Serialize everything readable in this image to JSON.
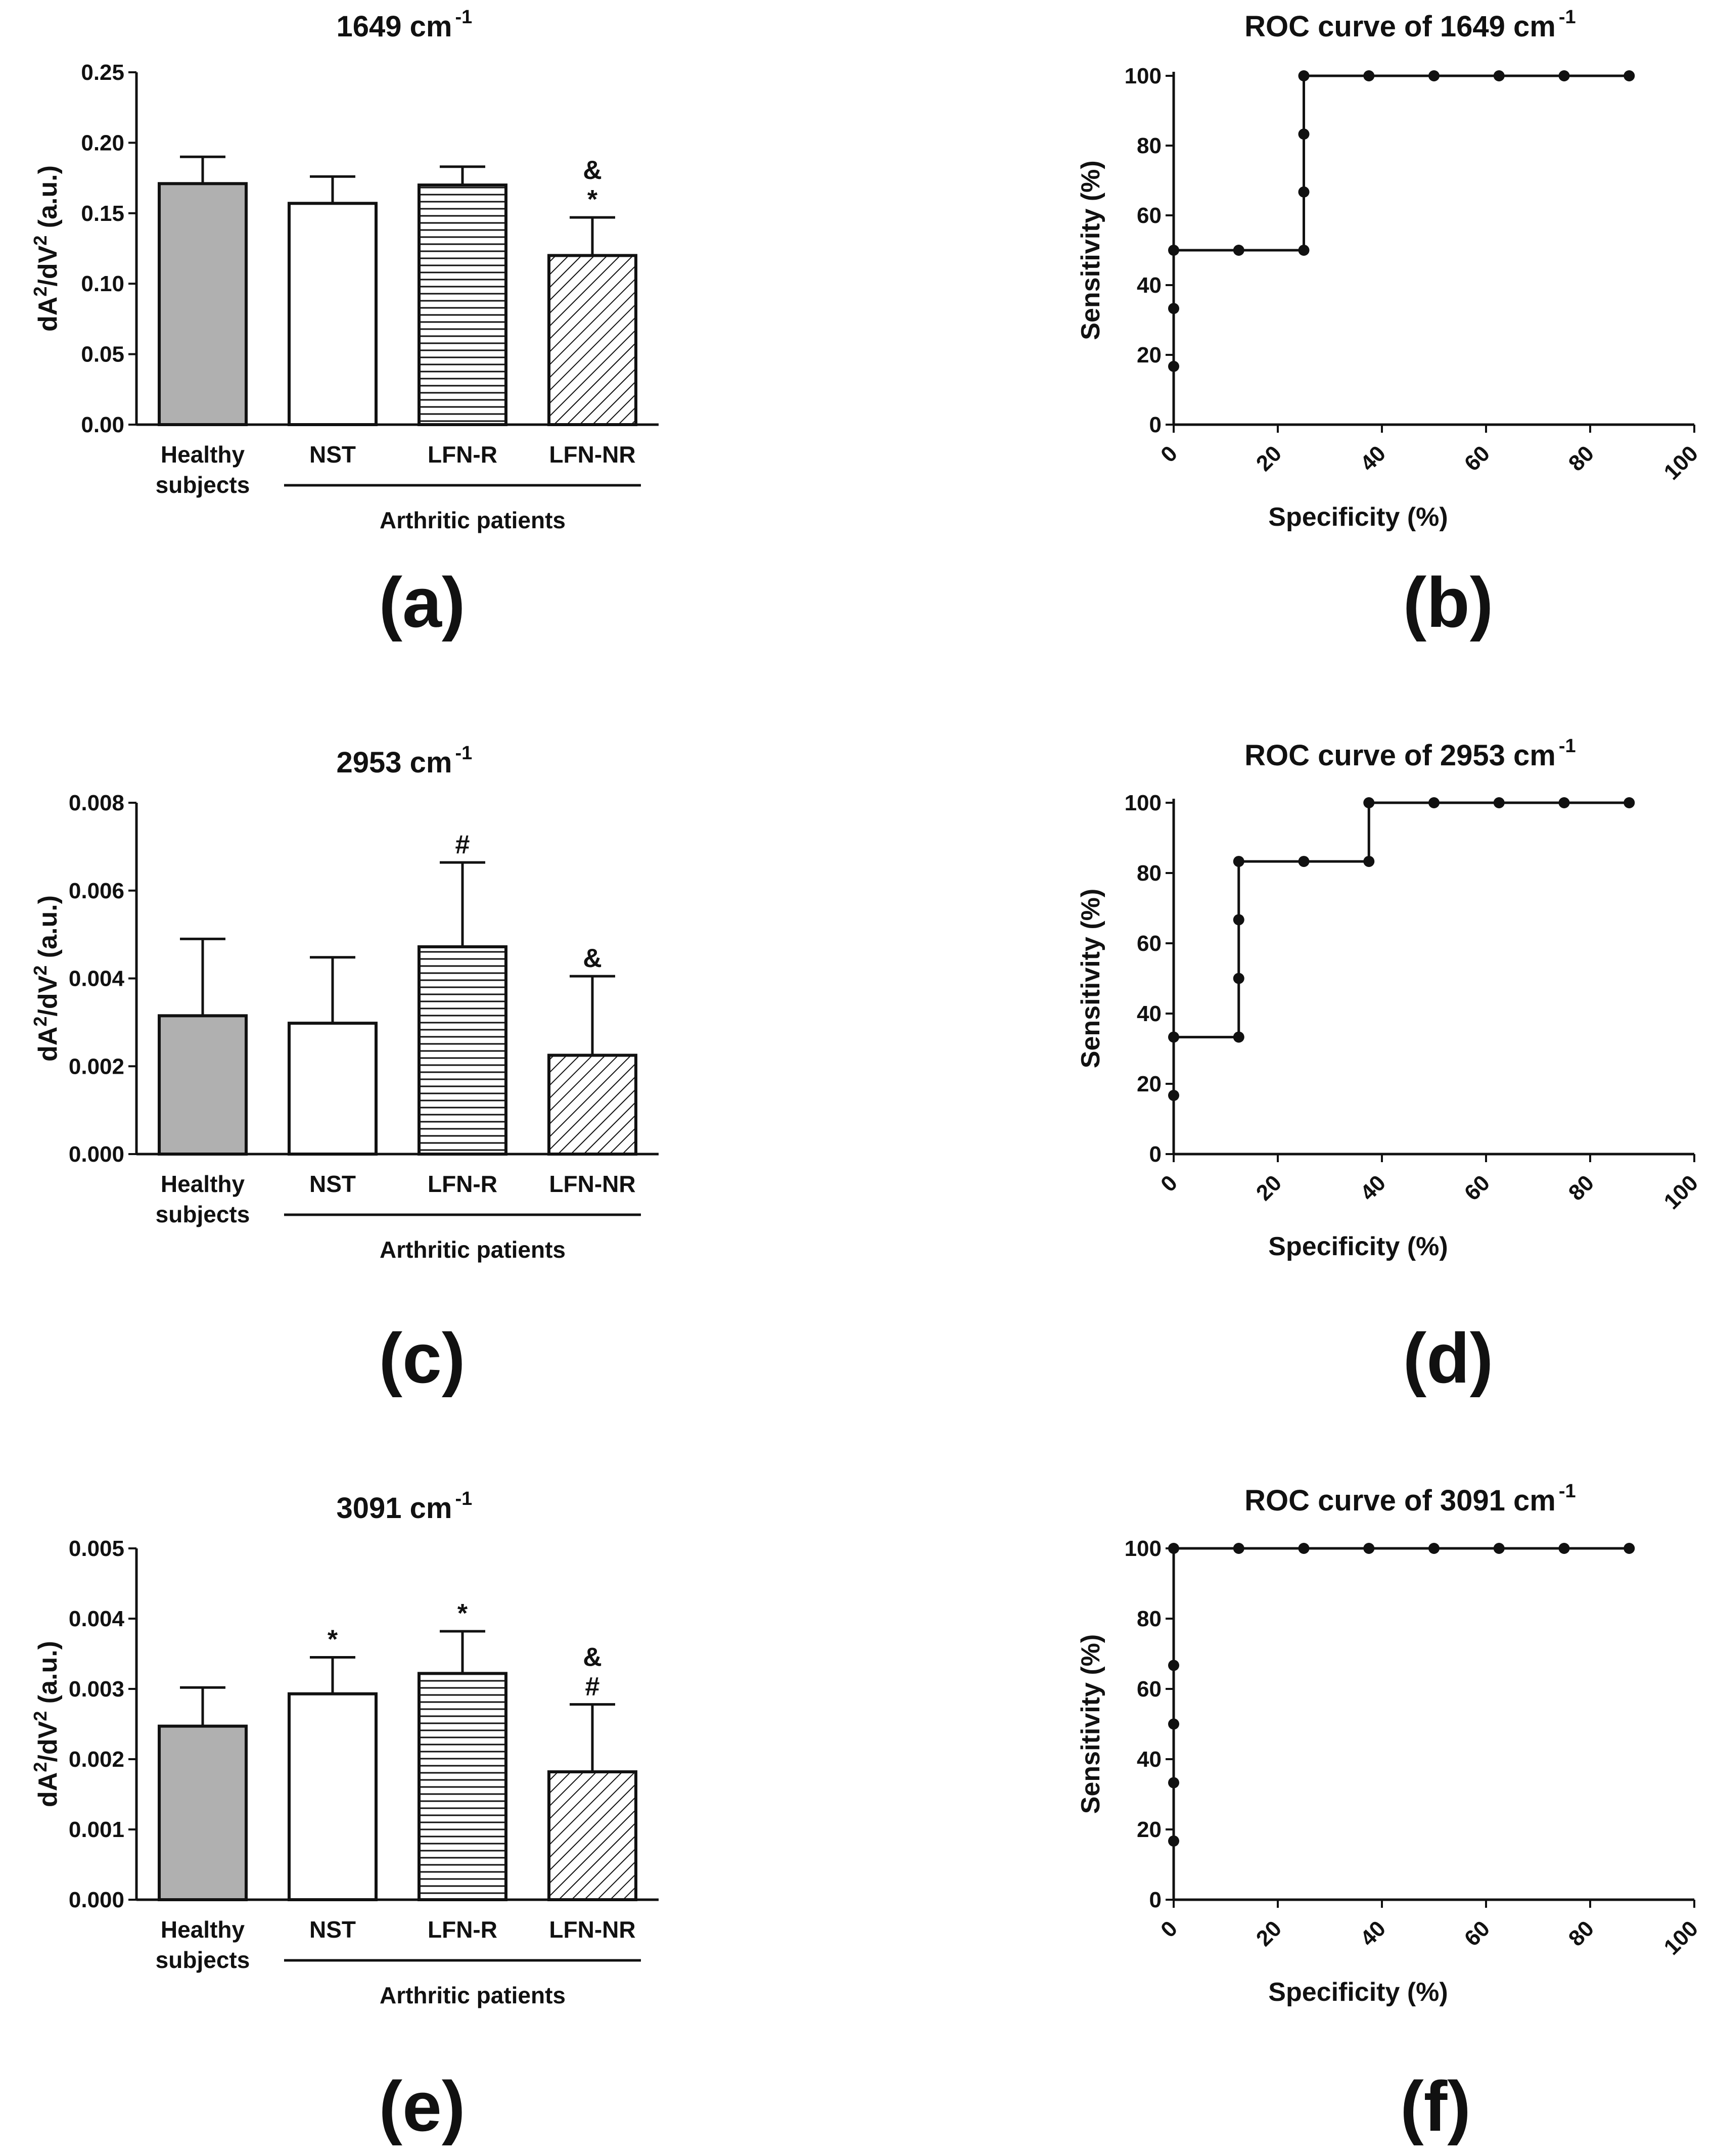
{
  "colors": {
    "axis": "#111111",
    "healthy_fill": "#b0b0b0",
    "bar_edge": "#111111",
    "background": "#ffffff"
  },
  "chart_data": [
    {
      "id": "a",
      "type": "bar",
      "letter": "(a)",
      "title": "1649 cm",
      "title_sup": "-1",
      "ylabel": "dA",
      "ylabel_sup1": "2",
      "ylabel_mid": "/dV",
      "ylabel_sup2": "2",
      "ylabel_end": " (a.u.)",
      "ylim": [
        0,
        0.25
      ],
      "yticks": [
        "0.00",
        "0.05",
        "0.10",
        "0.15",
        "0.20",
        "0.25"
      ],
      "categories": [
        {
          "line1": "Healthy",
          "line2": "subjects"
        },
        {
          "line1": "NST",
          "line2": ""
        },
        {
          "line1": "LFN-R",
          "line2": ""
        },
        {
          "line1": "LFN-NR",
          "line2": ""
        }
      ],
      "patterns": [
        "gray",
        "white",
        "hlines",
        "diag"
      ],
      "values": [
        0.171,
        0.157,
        0.17,
        0.12
      ],
      "errors": [
        0.019,
        0.019,
        0.013,
        0.027
      ],
      "annotations": [
        [],
        [],
        [],
        [
          "&",
          "*"
        ]
      ],
      "group_label": "Arthritic patients"
    },
    {
      "id": "b",
      "type": "line",
      "letter": "(b)",
      "title": "ROC curve of 1649 cm",
      "title_sup": "-1",
      "xlabel": "Specificity (%)",
      "ylabel": "Sensitivity (%)",
      "xlim": [
        0,
        100
      ],
      "ylim": [
        0,
        100
      ],
      "xticks": [
        "0",
        "20",
        "40",
        "60",
        "80",
        "100"
      ],
      "yticks": [
        "0",
        "20",
        "40",
        "60",
        "80",
        "100"
      ],
      "x": [
        0,
        0,
        0,
        12.5,
        25,
        25,
        25,
        25,
        37.5,
        50,
        62.5,
        75,
        87.5
      ],
      "y": [
        16.7,
        33.3,
        50,
        50,
        50,
        66.7,
        83.3,
        100,
        100,
        100,
        100,
        100,
        100
      ]
    },
    {
      "id": "c",
      "type": "bar",
      "letter": "(c)",
      "title": "2953 cm",
      "title_sup": "-1",
      "ylabel": "dA",
      "ylabel_sup1": "2",
      "ylabel_mid": "/dV",
      "ylabel_sup2": "2",
      "ylabel_end": " (a.u.)",
      "ylim": [
        0,
        0.008
      ],
      "yticks": [
        "0.000",
        "0.002",
        "0.004",
        "0.006",
        "0.008"
      ],
      "categories": [
        {
          "line1": "Healthy",
          "line2": "subjects"
        },
        {
          "line1": "NST",
          "line2": ""
        },
        {
          "line1": "LFN-R",
          "line2": ""
        },
        {
          "line1": "LFN-NR",
          "line2": ""
        }
      ],
      "patterns": [
        "gray",
        "white",
        "hlines",
        "diag"
      ],
      "values": [
        0.00315,
        0.00298,
        0.00472,
        0.00225
      ],
      "errors": [
        0.00175,
        0.0015,
        0.00192,
        0.0018
      ],
      "annotations": [
        [],
        [],
        [
          "#"
        ],
        [
          "&"
        ]
      ],
      "group_label": "Arthritic patients"
    },
    {
      "id": "d",
      "type": "line",
      "letter": "(d)",
      "title": "ROC curve of 2953 cm",
      "title_sup": "-1",
      "xlabel": "Specificity (%)",
      "ylabel": "Sensitivity (%)",
      "xlim": [
        0,
        100
      ],
      "ylim": [
        0,
        100
      ],
      "xticks": [
        "0",
        "20",
        "40",
        "60",
        "80",
        "100"
      ],
      "yticks": [
        "0",
        "20",
        "40",
        "60",
        "80",
        "100"
      ],
      "x": [
        0,
        0,
        12.5,
        12.5,
        12.5,
        12.5,
        25,
        37.5,
        37.5,
        50,
        62.5,
        75,
        87.5
      ],
      "y": [
        16.7,
        33.3,
        33.3,
        50,
        66.7,
        83.3,
        83.3,
        83.3,
        100,
        100,
        100,
        100,
        100
      ]
    },
    {
      "id": "e",
      "type": "bar",
      "letter": "(e)",
      "title": "3091 cm",
      "title_sup": "-1",
      "ylabel": "dA",
      "ylabel_sup1": "2",
      "ylabel_mid": "/dV",
      "ylabel_sup2": "2",
      "ylabel_end": " (a.u.)",
      "ylim": [
        0,
        0.005
      ],
      "yticks": [
        "0.000",
        "0.001",
        "0.002",
        "0.003",
        "0.004",
        "0.005"
      ],
      "categories": [
        {
          "line1": "Healthy",
          "line2": "subjects"
        },
        {
          "line1": "NST",
          "line2": ""
        },
        {
          "line1": "LFN-R",
          "line2": ""
        },
        {
          "line1": "LFN-NR",
          "line2": ""
        }
      ],
      "patterns": [
        "gray",
        "white",
        "hlines",
        "diag"
      ],
      "values": [
        0.00247,
        0.00293,
        0.00322,
        0.00182
      ],
      "errors": [
        0.00055,
        0.00052,
        0.0006,
        0.00096
      ],
      "annotations": [
        [],
        [
          "*"
        ],
        [
          "*"
        ],
        [
          "&",
          "#"
        ]
      ],
      "group_label": "Arthritic patients"
    },
    {
      "id": "f",
      "type": "line",
      "letter": "(f)",
      "title": "ROC curve of 3091 cm",
      "title_sup": "-1",
      "xlabel": "Specificity (%)",
      "ylabel": "Sensitivity (%)",
      "xlim": [
        0,
        100
      ],
      "ylim": [
        0,
        100
      ],
      "xticks": [
        "0",
        "20",
        "40",
        "60",
        "80",
        "100"
      ],
      "yticks": [
        "0",
        "20",
        "40",
        "60",
        "80",
        "100"
      ],
      "x": [
        0,
        0,
        0,
        0,
        0,
        12.5,
        25,
        37.5,
        50,
        62.5,
        75,
        87.5
      ],
      "y": [
        16.7,
        33.3,
        50,
        66.7,
        100,
        100,
        100,
        100,
        100,
        100,
        100,
        100
      ]
    }
  ]
}
